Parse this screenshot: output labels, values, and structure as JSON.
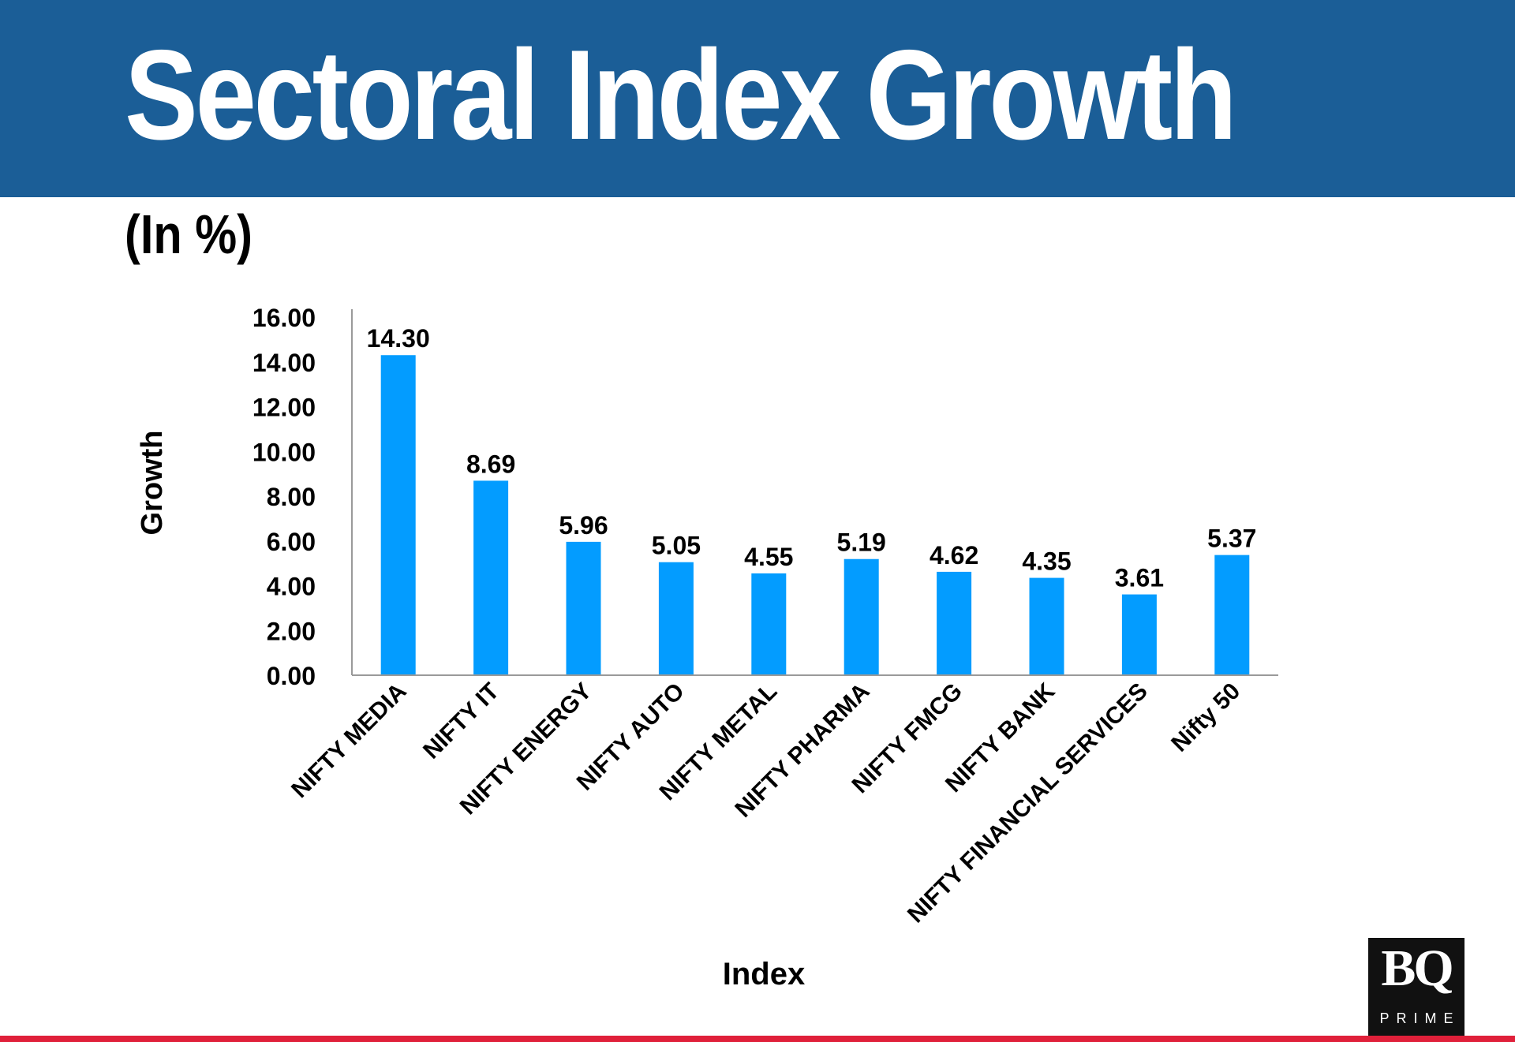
{
  "header": {
    "title": "Sectoral Index Growth",
    "unit_label": "(In %)"
  },
  "colors": {
    "header_bg": "#1b5e97",
    "bar": "#039cff",
    "accent_line": "#e0203a"
  },
  "logo": {
    "brand": "BQ",
    "sub": "PRIME"
  },
  "chart_data": {
    "type": "bar",
    "categories": [
      "NIFTY MEDIA",
      "NIFTY IT",
      "NIFTY ENERGY",
      "NIFTY AUTO",
      "NIFTY METAL",
      "NIFTY PHARMA",
      "NIFTY FMCG",
      "NIFTY BANK",
      "NIFTY FINANCIAL SERVICES",
      "Nifty 50"
    ],
    "values": [
      14.3,
      8.69,
      5.96,
      5.05,
      4.55,
      5.19,
      4.62,
      4.35,
      3.61,
      5.37
    ],
    "value_labels": [
      "14.30",
      "8.69",
      "5.96",
      "5.05",
      "4.55",
      "5.19",
      "4.62",
      "4.35",
      "3.61",
      "5.37"
    ],
    "xlabel": "Index",
    "ylabel": "Growth",
    "ylim": [
      0,
      16
    ],
    "yticks": [
      "0.00",
      "2.00",
      "4.00",
      "6.00",
      "8.00",
      "10.00",
      "12.00",
      "14.00",
      "16.00"
    ],
    "grid": false,
    "legend": "none"
  }
}
